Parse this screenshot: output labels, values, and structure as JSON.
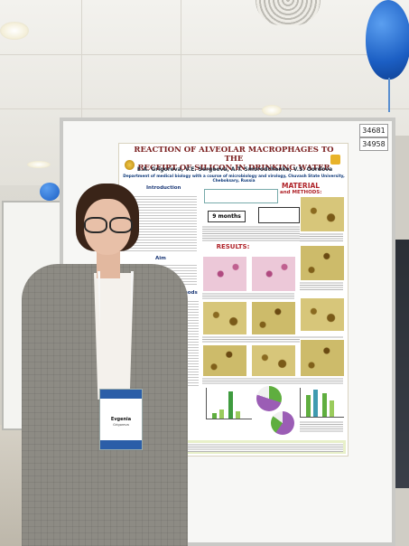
{
  "scene": {
    "description_colors": {
      "blazer": "#8d8b84",
      "balloon": "#1c5fc4",
      "poster_title": "#7a1f1f"
    }
  },
  "board_numbers": [
    "34681",
    "34958"
  ],
  "poster": {
    "title_line1": "REACTION OF ALVEOLAR MACROPHAGES TO THE",
    "title_line2": "RECEIPT OF SILICON IN DRINKING WATER",
    "authors": "E.A. Grigoreva, V.E. Sergeeva, A.T. Smorodchenko, V.S. Gordova",
    "department": "Department of medical biology with a course of microbiology and virology, Chuvash State University, Cheboksary, Russia",
    "intro_heading": "Introduction",
    "aim_heading": "Aim",
    "methods_heading": "Methods",
    "material_heading": "MATERIAL",
    "and_methods_heading": "and METHODS:",
    "duration": "9 months",
    "results_heading": "RESULTS:"
  },
  "badge": {
    "name": "Evgenia",
    "surname": "Grigoreva"
  }
}
